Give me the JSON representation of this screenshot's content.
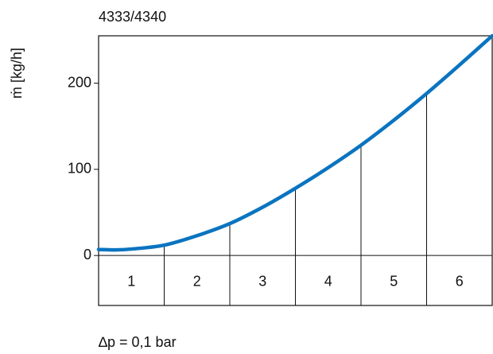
{
  "chart_data": {
    "type": "line",
    "title": "4333/4340",
    "y_label": "ṁ [kg/h]",
    "x_label": "∆p  = 0,1 bar",
    "categories": [
      "1",
      "2",
      "3",
      "4",
      "5",
      "6"
    ],
    "x": [
      0,
      0.25,
      0.5,
      1,
      1.5,
      2,
      2.5,
      3,
      3.5,
      4,
      4.5,
      5,
      5.5,
      6
    ],
    "series": [
      {
        "color": "#0a74c0",
        "values": [
          7,
          6.5,
          7.5,
          12,
          23,
          37,
          56,
          78,
          102,
          128,
          157,
          188,
          221,
          255
        ]
      }
    ],
    "xlim": [
      0,
      6
    ],
    "ylim": [
      -58,
      255
    ],
    "yticks": [
      0,
      100,
      200
    ]
  }
}
